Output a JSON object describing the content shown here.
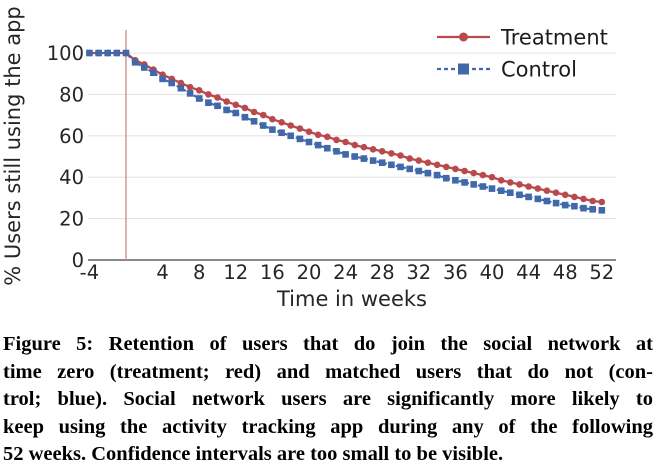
{
  "chart_data": {
    "type": "line",
    "title": "",
    "xlabel": "Time in weeks",
    "ylabel": "% Users still using the app",
    "xlim": [
      -4,
      52
    ],
    "ylim": [
      0,
      100
    ],
    "grid": "horizontal",
    "legend_position": "upper right",
    "xticks": [
      -4,
      4,
      8,
      12,
      16,
      20,
      24,
      28,
      32,
      36,
      40,
      44,
      48,
      52
    ],
    "yticks": [
      0,
      20,
      40,
      60,
      80,
      100
    ],
    "x": [
      -4,
      -3,
      -2,
      -1,
      0,
      1,
      2,
      3,
      4,
      5,
      6,
      7,
      8,
      9,
      10,
      11,
      12,
      13,
      14,
      15,
      16,
      17,
      18,
      19,
      20,
      21,
      22,
      23,
      24,
      25,
      26,
      27,
      28,
      29,
      30,
      31,
      32,
      33,
      34,
      35,
      36,
      37,
      38,
      39,
      40,
      41,
      42,
      43,
      44,
      45,
      46,
      47,
      48,
      49,
      50,
      51,
      52
    ],
    "series": [
      {
        "name": "Treatment",
        "color": "#b8494d",
        "marker": "circle",
        "line_style": "solid",
        "values": [
          100,
          100,
          100,
          100,
          100,
          96.5,
          94.5,
          92,
          89.5,
          87.5,
          85.5,
          83.5,
          82,
          80,
          78.5,
          76.5,
          75,
          73.5,
          71.5,
          70,
          68,
          66.5,
          65,
          63.5,
          62,
          60.5,
          59.5,
          58,
          57,
          55.5,
          54.5,
          53.5,
          52.5,
          51.5,
          50.5,
          49,
          48,
          47,
          46,
          45,
          44,
          43,
          42,
          41,
          40,
          38.5,
          37.5,
          36.5,
          35.5,
          34.5,
          33.5,
          32.5,
          31.5,
          30.5,
          29.5,
          28.5,
          28
        ]
      },
      {
        "name": "Control",
        "color": "#4068aa",
        "marker": "square",
        "line_style": "dashed",
        "values": [
          100,
          100,
          100,
          100,
          100,
          95.5,
          93,
          90.5,
          87.5,
          85.5,
          83,
          80.5,
          78,
          76,
          74.5,
          72.5,
          71,
          69,
          67,
          65,
          63,
          61.5,
          60,
          58.5,
          57,
          55.5,
          54,
          52.5,
          51,
          50,
          49,
          48,
          47,
          46,
          45,
          44,
          43,
          42,
          41,
          39.5,
          38.5,
          37.5,
          36.5,
          35.5,
          34.5,
          33.5,
          32.5,
          31.5,
          30.5,
          29.5,
          28.5,
          27.5,
          26.5,
          26,
          25,
          24.5,
          24
        ]
      }
    ],
    "annotations": [
      {
        "type": "vline",
        "x": 0,
        "color": "#cf9193"
      }
    ],
    "colors": {
      "grid": "#e4e4e4",
      "axis": "#404040",
      "tick_text": "#262626",
      "legend_text": "#1c1c1c",
      "background": "#ffffff"
    }
  },
  "caption": {
    "lines": [
      "Figure 5: Retention of users that do join the social network at",
      "time zero (treatment; red) and matched users that do not (con-",
      "trol; blue). Social network users are significantly more likely to",
      "keep using the activity tracking app during any of the following",
      "52 weeks. Confidence intervals are too small to be visible."
    ],
    "full_text": "Figure 5: Retention of users that do join the social network at time zero (treatment; red) and matched users that do not (control; blue). Social network users are significantly more likely to keep using the activity tracking app during any of the following 52 weeks. Confidence intervals are too small to be visible."
  }
}
